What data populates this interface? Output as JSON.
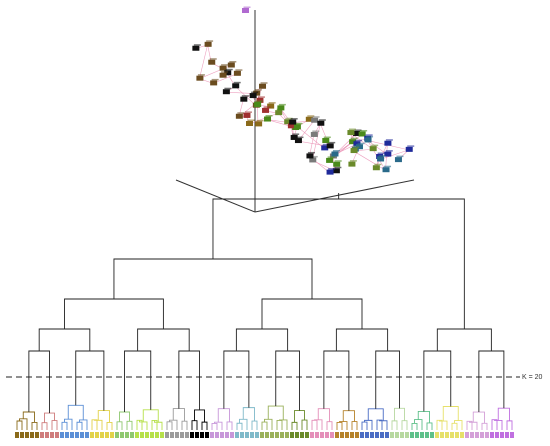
{
  "figure": {
    "cut_line_label": "K = 20",
    "scatter_3d": {
      "axis_color": "#333333",
      "link_color": "#e98ab0",
      "point_colors": [
        "#6b4c1f",
        "#8a6a1a",
        "#1f2a9a",
        "#4a8a1a",
        "#7a7a7a",
        "#111111",
        "#a03030",
        "#2a6a8a",
        "#b06ad0",
        "#6a8a2a"
      ]
    },
    "dendrogram": {
      "line_color": "#222222",
      "leaf_count": 100,
      "cluster_count": 20,
      "cluster_colors": [
        "#8a6a1a",
        "#cf7c7c",
        "#5b8fd6",
        "#e2d24a",
        "#8fc870",
        "#b6e04a",
        "#9b9b9b",
        "#000000",
        "#c797d9",
        "#7fb9c9",
        "#9ab05a",
        "#6a8a2a",
        "#e48fb9",
        "#b5822a",
        "#4a6cc4",
        "#b7d8a0",
        "#5ec08a",
        "#e6e06a",
        "#d4a0d8",
        "#c070e0"
      ]
    }
  }
}
